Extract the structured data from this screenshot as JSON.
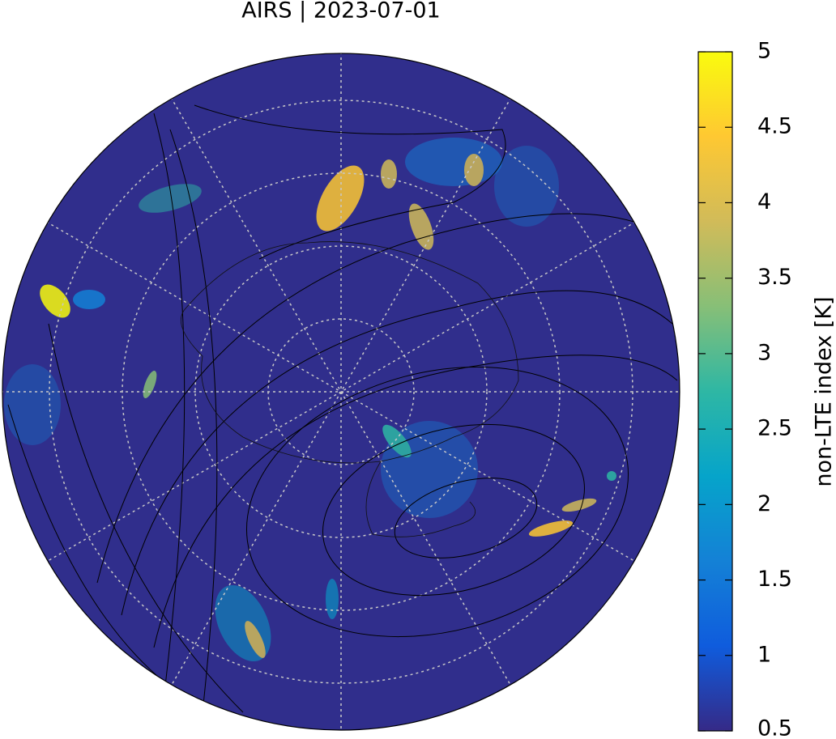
{
  "map": {
    "title": "AIRS | 2023-07-01",
    "colorbar": {
      "label": "non-LTE index [K]",
      "lim": [
        0.5,
        5
      ],
      "ticks": [
        0.5,
        1,
        1.5,
        2,
        2.5,
        3,
        3.5,
        4,
        4.5,
        5
      ],
      "colors": [
        "#352a87",
        "#0f5cdd",
        "#1481d6",
        "#06a4ca",
        "#2eb7a4",
        "#87bf77",
        "#d1bb59",
        "#fec832",
        "#f9fb0e"
      ]
    }
  }
}
